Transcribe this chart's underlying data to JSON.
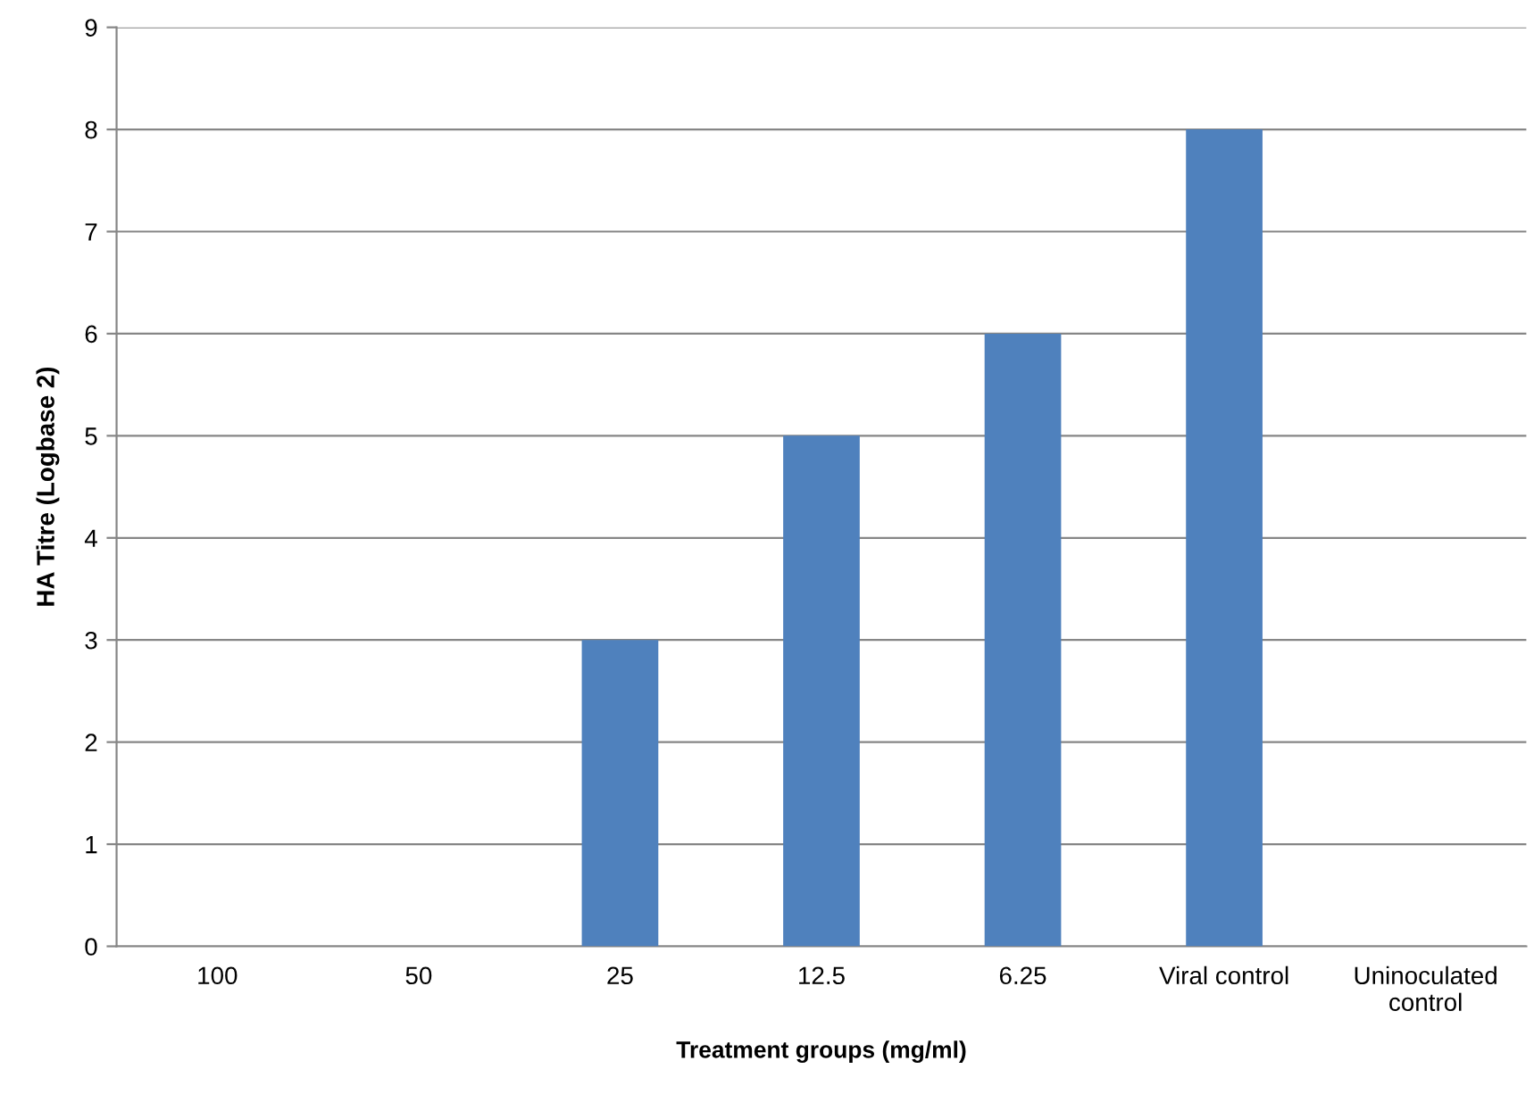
{
  "chart_data": {
    "type": "bar",
    "xlabel": "Treatment groups (mg/ml)",
    "ylabel": "HA Titre (Logbase 2)",
    "categories": [
      "100",
      "50",
      "25",
      "12.5",
      "6.25",
      "Viral control",
      "Uninoculated\ncontrol"
    ],
    "values": [
      0,
      0,
      3,
      5,
      6,
      8,
      0
    ],
    "color": "#4f81bd",
    "ylim": [
      0,
      9
    ],
    "yticks": [
      0,
      1,
      2,
      3,
      4,
      5,
      6,
      7,
      8,
      9
    ],
    "grid": "y",
    "legend": false
  }
}
